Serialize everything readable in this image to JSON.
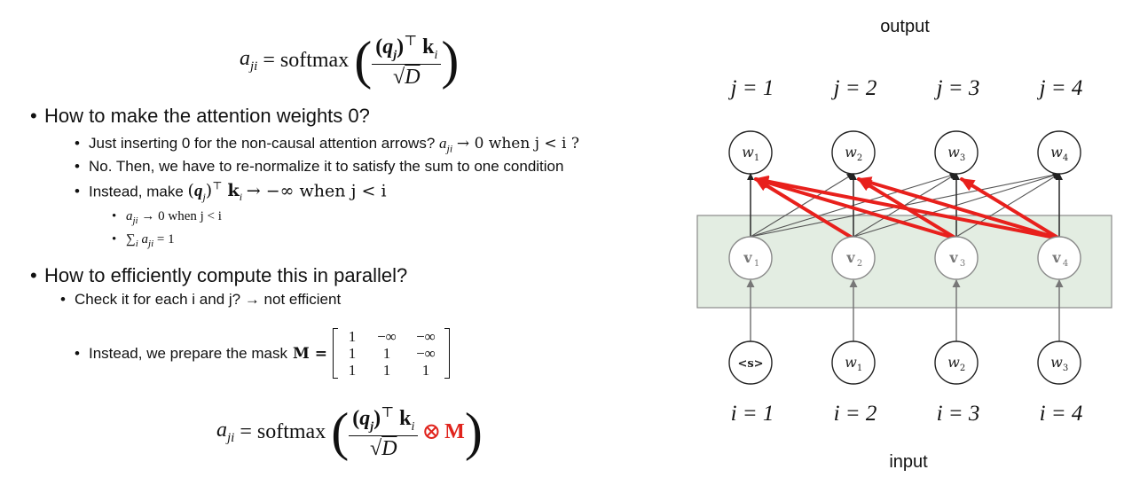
{
  "equation_top": {
    "lhs": "a",
    "lhs_sub": "ji",
    "op": "= softmax",
    "num_q": "q",
    "num_q_sub": "j",
    "num_T": "⊤",
    "num_k": "k",
    "num_k_sub": "i",
    "den": "D"
  },
  "bullets": {
    "b1": "How to make the attention weights 0?",
    "b1_1": "Just inserting 0 for the non-causal attention arrows?",
    "b1_1_math": "a",
    "b1_1_math_sub": "ji",
    "b1_1_tail": "→ 0 when j < i ?",
    "b1_2": "No. Then, we have to re-normalize it to satisfy the sum to one condition",
    "b1_3_pre": "Instead, make",
    "b1_3_post": "→ −∞ when j < i",
    "b1_3_1": "→ 0 when j < i",
    "b1_3_2": "= 1",
    "b2": "How to efficiently compute this in parallel?",
    "b2_1": "Check it for each i and j?  →  not efficient",
    "b2_2": "Instead, we prepare the mask",
    "b2_2_M": "M ="
  },
  "matrix": {
    "cells": [
      "1",
      "−∞",
      "−∞",
      "1",
      "1",
      "−∞",
      "1",
      "1",
      "1"
    ]
  },
  "equation_bottom": {
    "lhs": "a",
    "lhs_sub": "ji",
    "op": "= softmax",
    "num_q": "q",
    "num_q_sub": "j",
    "num_T": "⊤",
    "num_k": "k",
    "num_k_sub": "i",
    "den": "D",
    "otimes": "⊗",
    "mask": "M"
  },
  "diagram": {
    "output_label": "output",
    "input_label": "input",
    "j_labels": [
      "j = 1",
      "j = 2",
      "j = 3",
      "j = 4"
    ],
    "i_labels": [
      "i = 1",
      "i = 2",
      "i = 3",
      "i = 4"
    ],
    "output_nodes": [
      "w",
      "w",
      "w",
      "w"
    ],
    "output_subs": [
      "1",
      "2",
      "3",
      "4"
    ],
    "hidden_nodes": [
      "v",
      "v",
      "v",
      "v"
    ],
    "hidden_subs": [
      "1",
      "2",
      "3",
      "4"
    ],
    "input_nodes": [
      "<s>",
      "w",
      "w",
      "w"
    ],
    "input_subs": [
      "",
      "1",
      "2",
      "3"
    ],
    "colors": {
      "box_fill": "#e3ede2",
      "box_stroke": "#8a8a8a",
      "red_arrow": "#e8201c",
      "black_arrow": "#222222",
      "gray_arrow": "#777777"
    }
  }
}
